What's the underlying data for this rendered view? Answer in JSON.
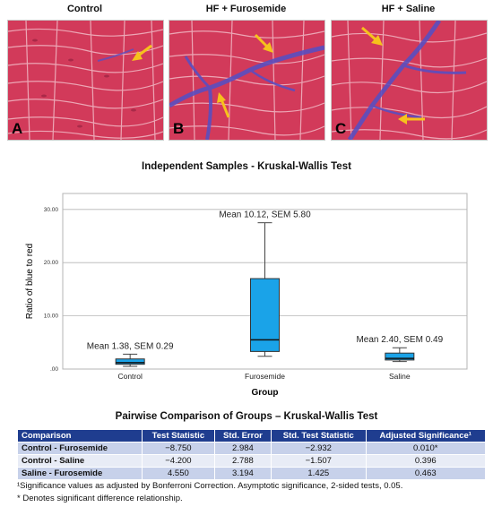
{
  "panels": [
    {
      "title": "Control",
      "letter": "A"
    },
    {
      "title": "HF + Furosemide",
      "letter": "B"
    },
    {
      "title": "HF + Saline",
      "letter": "C"
    }
  ],
  "colors": {
    "tissue": "#d23a5a",
    "fibrosis": "#5a4fc0",
    "arrow": "#f6c21c",
    "box": "#1aa3e8",
    "table_header": "#1f3d8f"
  },
  "chart_data": {
    "type": "box",
    "title": "Independent Samples - Kruskal-Wallis Test",
    "xlabel": "Group",
    "ylabel": "Ratio of blue to red",
    "categories": [
      "Control",
      "Furosemide",
      "Saline"
    ],
    "ylim": [
      0,
      33
    ],
    "yticks": [
      0,
      10,
      20,
      30
    ],
    "ytick_labels": [
      ".00",
      "10.00",
      "20.00",
      "30.00"
    ],
    "grid": true,
    "boxes": [
      {
        "category": "Control",
        "min": 0.5,
        "q1": 0.9,
        "median": 1.2,
        "q3": 1.9,
        "max": 2.8
      },
      {
        "category": "Furosemide",
        "min": 2.4,
        "q1": 3.3,
        "median": 5.5,
        "q3": 17.0,
        "max": 27.5
      },
      {
        "category": "Saline",
        "min": 1.4,
        "q1": 1.7,
        "median": 2.0,
        "q3": 3.0,
        "max": 4.0
      }
    ],
    "annotations": [
      "Mean 1.38, SEM 0.29",
      "Mean 10.12, SEM 5.80",
      "Mean 2.40, SEM 0.49"
    ]
  },
  "table": {
    "title": "Pairwise Comparison of Groups – Kruskal-Wallis Test",
    "headers": [
      "Comparison",
      "Test Statistic",
      "Std. Error",
      "Std. Test Statistic",
      "Adjusted Significance¹"
    ],
    "rows": [
      [
        "Control - Furosemide",
        "−8.750",
        "2.984",
        "−2.932",
        "0.010*"
      ],
      [
        "Control - Saline",
        "−4.200",
        "2.788",
        "−1.507",
        "0.396"
      ],
      [
        "Saline - Furosemide",
        "4.550",
        "3.194",
        "1.425",
        "0.463"
      ]
    ],
    "footnotes": [
      "¹Significance values as adjusted by Bonferroni Correction.  Asymptotic significance, 2-sided tests, 0.05.",
      "* Denotes significant difference relationship."
    ]
  }
}
